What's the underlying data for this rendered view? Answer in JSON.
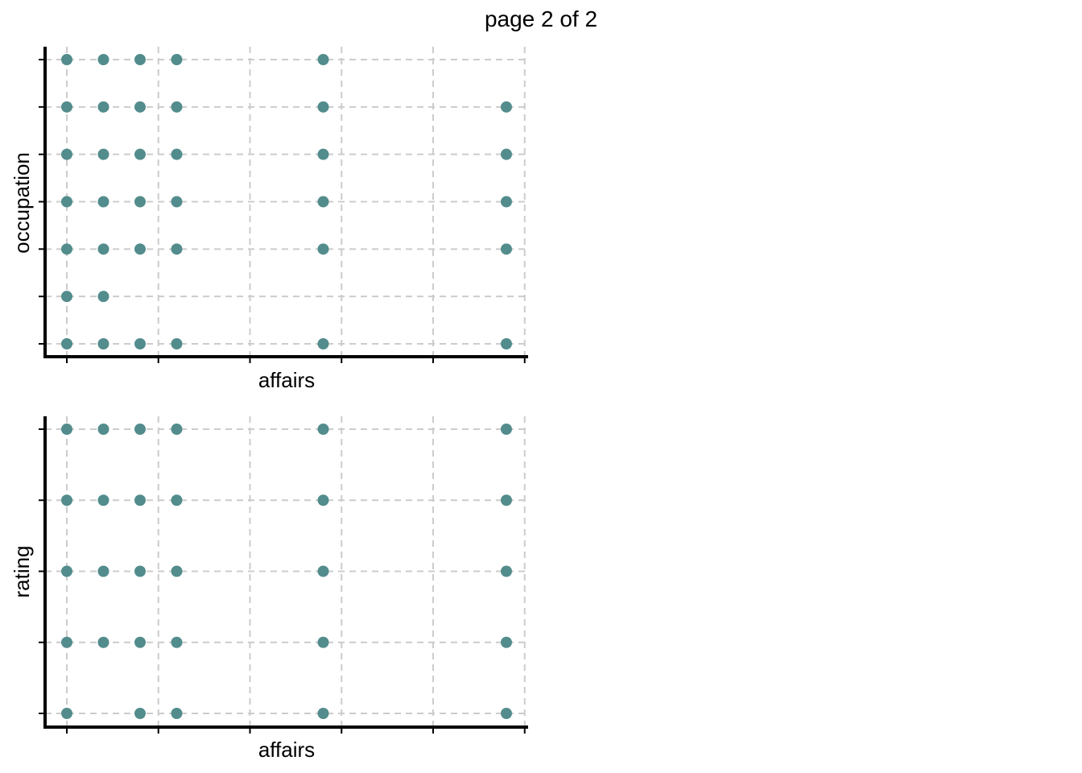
{
  "page": {
    "title": "page 2 of 2"
  },
  "style": {
    "point_color": "#538c8c",
    "grid_color": "#cccccc",
    "axis_color": "#000000"
  },
  "chart_data": [
    {
      "type": "scatter",
      "xlabel": "affairs",
      "ylabel": "occupation",
      "xlim": [
        -0.25,
        12.25
      ],
      "ylim": [
        0.7,
        7.3
      ],
      "x_ticks": [
        0,
        2.5,
        5,
        7.5,
        10,
        12.5
      ],
      "y_ticks": [
        1,
        2,
        3,
        4,
        5,
        6,
        7
      ],
      "show_tick_labels": false,
      "grid": true,
      "points": [
        {
          "x": 0,
          "y": 7
        },
        {
          "x": 1,
          "y": 7
        },
        {
          "x": 2,
          "y": 7
        },
        {
          "x": 3,
          "y": 7
        },
        {
          "x": 7,
          "y": 7
        },
        {
          "x": 0,
          "y": 6
        },
        {
          "x": 1,
          "y": 6
        },
        {
          "x": 2,
          "y": 6
        },
        {
          "x": 3,
          "y": 6
        },
        {
          "x": 7,
          "y": 6
        },
        {
          "x": 12,
          "y": 6
        },
        {
          "x": 0,
          "y": 5
        },
        {
          "x": 1,
          "y": 5
        },
        {
          "x": 2,
          "y": 5
        },
        {
          "x": 3,
          "y": 5
        },
        {
          "x": 7,
          "y": 5
        },
        {
          "x": 12,
          "y": 5
        },
        {
          "x": 0,
          "y": 4
        },
        {
          "x": 1,
          "y": 4
        },
        {
          "x": 2,
          "y": 4
        },
        {
          "x": 3,
          "y": 4
        },
        {
          "x": 7,
          "y": 4
        },
        {
          "x": 12,
          "y": 4
        },
        {
          "x": 0,
          "y": 3
        },
        {
          "x": 1,
          "y": 3
        },
        {
          "x": 2,
          "y": 3
        },
        {
          "x": 3,
          "y": 3
        },
        {
          "x": 7,
          "y": 3
        },
        {
          "x": 12,
          "y": 3
        },
        {
          "x": 0,
          "y": 2
        },
        {
          "x": 1,
          "y": 2
        },
        {
          "x": 0,
          "y": 1
        },
        {
          "x": 1,
          "y": 1
        },
        {
          "x": 2,
          "y": 1
        },
        {
          "x": 3,
          "y": 1
        },
        {
          "x": 7,
          "y": 1
        },
        {
          "x": 12,
          "y": 1
        }
      ]
    },
    {
      "type": "scatter",
      "xlabel": "affairs",
      "ylabel": "rating",
      "xlim": [
        -0.25,
        12.25
      ],
      "ylim": [
        0.8,
        5.2
      ],
      "x_ticks": [
        0,
        2.5,
        5,
        7.5,
        10,
        12.5
      ],
      "y_ticks": [
        1,
        2,
        3,
        4,
        5
      ],
      "show_tick_labels": false,
      "grid": true,
      "points": [
        {
          "x": 0,
          "y": 5
        },
        {
          "x": 1,
          "y": 5
        },
        {
          "x": 2,
          "y": 5
        },
        {
          "x": 3,
          "y": 5
        },
        {
          "x": 7,
          "y": 5
        },
        {
          "x": 12,
          "y": 5
        },
        {
          "x": 0,
          "y": 4
        },
        {
          "x": 1,
          "y": 4
        },
        {
          "x": 2,
          "y": 4
        },
        {
          "x": 3,
          "y": 4
        },
        {
          "x": 7,
          "y": 4
        },
        {
          "x": 12,
          "y": 4
        },
        {
          "x": 0,
          "y": 3
        },
        {
          "x": 1,
          "y": 3
        },
        {
          "x": 2,
          "y": 3
        },
        {
          "x": 3,
          "y": 3
        },
        {
          "x": 7,
          "y": 3
        },
        {
          "x": 12,
          "y": 3
        },
        {
          "x": 0,
          "y": 2
        },
        {
          "x": 1,
          "y": 2
        },
        {
          "x": 2,
          "y": 2
        },
        {
          "x": 3,
          "y": 2
        },
        {
          "x": 7,
          "y": 2
        },
        {
          "x": 12,
          "y": 2
        },
        {
          "x": 0,
          "y": 1
        },
        {
          "x": 2,
          "y": 1
        },
        {
          "x": 3,
          "y": 1
        },
        {
          "x": 7,
          "y": 1
        },
        {
          "x": 12,
          "y": 1
        }
      ]
    }
  ]
}
